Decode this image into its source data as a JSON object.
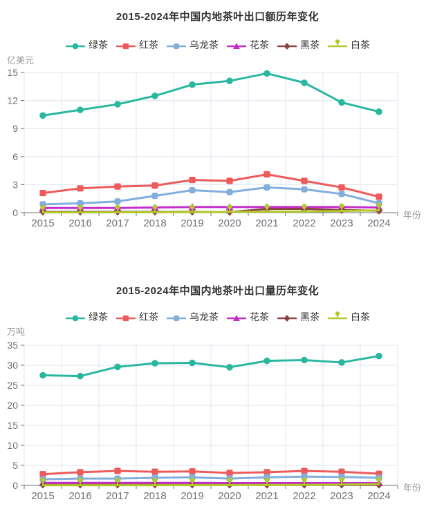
{
  "page": {
    "background": "#ffffff"
  },
  "chart_data": [
    {
      "type": "line",
      "title": "2015-2024年中国内地茶叶出口额历年变化",
      "ylabel": "亿美元",
      "xlabel": "年份",
      "categories": [
        "2015",
        "2016",
        "2017",
        "2018",
        "2019",
        "2020",
        "2021",
        "2022",
        "2023",
        "2024"
      ],
      "y_ticks": [
        0,
        3,
        6,
        9,
        12,
        15
      ],
      "ylim": [
        0,
        15
      ],
      "grid": true,
      "legend_position": "top",
      "series": [
        {
          "id": "green-tea",
          "name": "绿茶",
          "color": "#2ab7a0",
          "marker": "circle",
          "values": [
            10.4,
            11.0,
            11.6,
            12.5,
            13.7,
            14.1,
            14.9,
            13.9,
            11.8,
            10.8
          ]
        },
        {
          "id": "red-tea",
          "name": "红茶",
          "color": "#ee5a5a",
          "marker": "square",
          "values": [
            2.1,
            2.6,
            2.8,
            2.9,
            3.5,
            3.4,
            4.1,
            3.4,
            2.7,
            1.7
          ]
        },
        {
          "id": "oolong-tea",
          "name": "乌龙茶",
          "color": "#82aede",
          "marker": "round-square",
          "values": [
            0.9,
            1.0,
            1.2,
            1.8,
            2.4,
            2.2,
            2.7,
            2.5,
            2.0,
            1.0
          ]
        },
        {
          "id": "flower-tea",
          "name": "花茶",
          "color": "#c52ccb",
          "marker": "triangle",
          "values": [
            0.5,
            0.5,
            0.5,
            0.55,
            0.6,
            0.6,
            0.6,
            0.6,
            0.6,
            0.55
          ]
        },
        {
          "id": "dark-tea",
          "name": "黑茶",
          "color": "#8b4343",
          "marker": "diamond",
          "values": [
            0.08,
            0.08,
            0.08,
            0.08,
            0.08,
            0.06,
            0.4,
            0.42,
            0.28,
            0.2
          ]
        },
        {
          "id": "white-tea",
          "name": "白茶",
          "color": "#b2c82b",
          "marker": "pin",
          "values": [
            0.03,
            0.03,
            0.04,
            0.05,
            0.06,
            0.08,
            0.1,
            0.12,
            0.18,
            0.25
          ]
        }
      ]
    },
    {
      "type": "line",
      "title": "2015-2024年中国内地茶叶出口量历年变化",
      "ylabel": "万吨",
      "xlabel": "年份",
      "categories": [
        "2015",
        "2016",
        "2017",
        "2018",
        "2019",
        "2020",
        "2021",
        "2022",
        "2023",
        "2024"
      ],
      "y_ticks": [
        0,
        5,
        10,
        15,
        20,
        25,
        30,
        35
      ],
      "ylim": [
        0,
        35
      ],
      "grid": true,
      "legend_position": "top",
      "series": [
        {
          "id": "green-tea",
          "name": "绿茶",
          "color": "#2ab7a0",
          "marker": "circle",
          "values": [
            27.5,
            27.3,
            29.6,
            30.5,
            30.6,
            29.5,
            31.1,
            31.3,
            30.7,
            32.3
          ]
        },
        {
          "id": "red-tea",
          "name": "红茶",
          "color": "#ee5a5a",
          "marker": "square",
          "values": [
            2.8,
            3.3,
            3.6,
            3.4,
            3.5,
            3.1,
            3.3,
            3.6,
            3.4,
            2.9
          ]
        },
        {
          "id": "oolong-tea",
          "name": "乌龙茶",
          "color": "#82aede",
          "marker": "round-square",
          "values": [
            1.5,
            1.7,
            1.7,
            1.9,
            2.0,
            1.7,
            2.0,
            2.2,
            2.1,
            1.9
          ]
        },
        {
          "id": "flower-tea",
          "name": "花茶",
          "color": "#c52ccb",
          "marker": "triangle",
          "values": [
            0.65,
            0.65,
            0.65,
            0.65,
            0.65,
            0.6,
            0.6,
            0.6,
            0.6,
            0.6
          ]
        },
        {
          "id": "dark-tea",
          "name": "黑茶",
          "color": "#8b4343",
          "marker": "diamond",
          "values": [
            0.15,
            0.15,
            0.15,
            0.15,
            0.15,
            0.12,
            0.12,
            0.12,
            0.12,
            0.12
          ]
        },
        {
          "id": "white-tea",
          "name": "白茶",
          "color": "#b2c82b",
          "marker": "pin",
          "values": [
            0.05,
            0.05,
            0.05,
            0.05,
            0.06,
            0.08,
            0.1,
            0.12,
            0.2,
            0.3
          ]
        }
      ]
    }
  ],
  "style": {
    "grid_color": "#e0e6f1",
    "axis_color": "#6e7079",
    "title_color": "#333333",
    "axis_name_color": "#999999"
  }
}
